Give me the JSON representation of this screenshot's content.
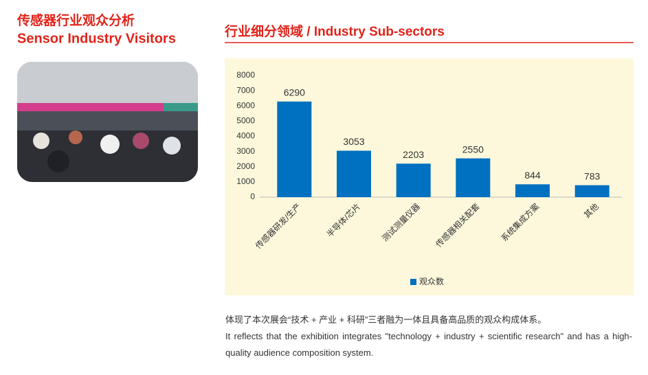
{
  "header": {
    "title_cn": "传感器行业观众分析",
    "title_en": "Sensor Industry Visitors"
  },
  "section_title": "行业细分领域 / Industry Sub-sectors",
  "chart_data": {
    "type": "bar",
    "categories": [
      "传感器研发/生产",
      "半导体/芯片",
      "测试测量仪器",
      "传感器相关配套",
      "系统集成方案",
      "其他"
    ],
    "series": [
      {
        "name": "观众数",
        "color": "#0070c0",
        "values": [
          6290,
          3053,
          2203,
          2550,
          844,
          783
        ]
      }
    ],
    "ylim": [
      0,
      8000
    ],
    "yticks": [
      0,
      1000,
      2000,
      3000,
      4000,
      5000,
      6000,
      7000,
      8000
    ],
    "grid": false,
    "legend": "bottom"
  },
  "paragraph": {
    "cn": "体现了本次展会“技术 + 产业 + 科研”三者融为一体且具备高品质的观众构成体系。",
    "en": "It reflects that the exhibition integrates \"technology + industry + scientific research\" and has a high-quality audience composition system."
  }
}
